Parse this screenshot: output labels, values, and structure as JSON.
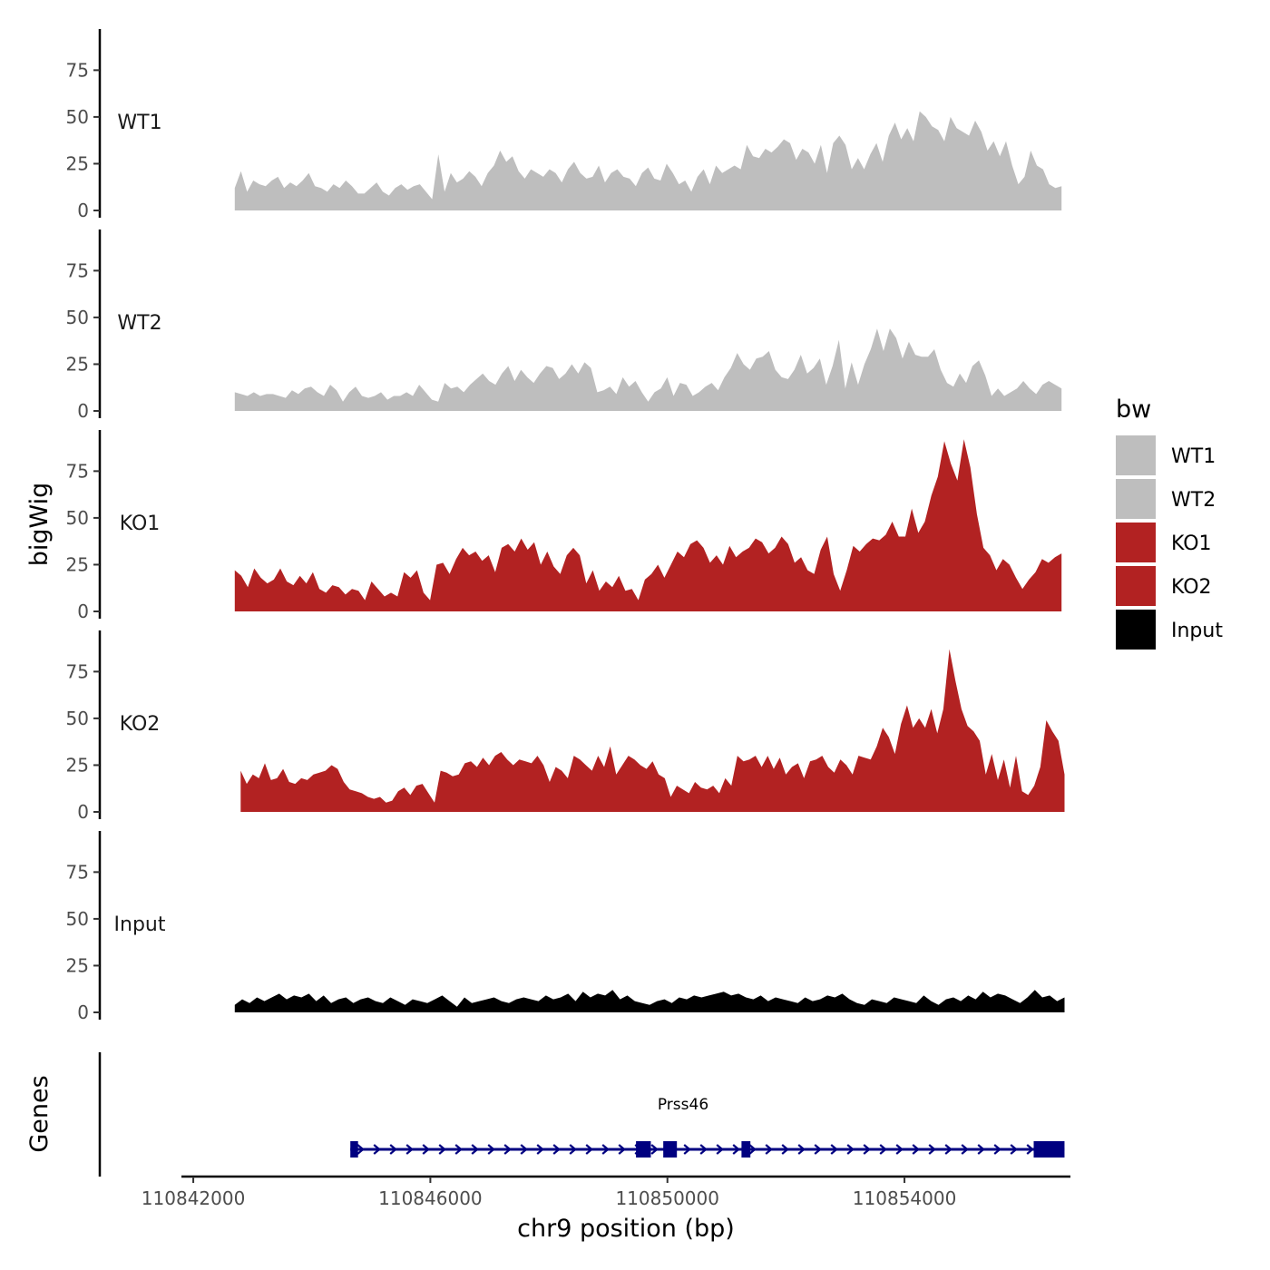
{
  "chart_data": {
    "type": "area",
    "y_axis_title": "bigWig",
    "x_axis_title": "chr9 position (bp)",
    "genes_axis_title": "Genes",
    "x_range": [
      110841800,
      110856800
    ],
    "data_extent": [
      110842700,
      110856700
    ],
    "y_range": [
      0,
      97
    ],
    "y_ticks": [
      0,
      25,
      50,
      75
    ],
    "x_ticks": [
      110842000,
      110846000,
      110850000,
      110854000
    ],
    "x_tick_labels": [
      "110842000",
      "110846000",
      "110850000",
      "110854000"
    ],
    "y_tick_labels": [
      "0",
      "25",
      "50",
      "75"
    ],
    "legend": {
      "title": "bw",
      "entries": [
        {
          "name": "WT1",
          "color": "#bebebe"
        },
        {
          "name": "WT2",
          "color": "#bebebe"
        },
        {
          "name": "KO1",
          "color": "#b22222"
        },
        {
          "name": "KO2",
          "color": "#b22222"
        },
        {
          "name": "Input",
          "color": "#000000"
        }
      ]
    },
    "tracks": [
      {
        "name": "WT1",
        "color": "#bebebe",
        "start": 110842700,
        "end": 110856650,
        "values": [
          12,
          21,
          10,
          16,
          14,
          13,
          16,
          18,
          12,
          15,
          13,
          16,
          20,
          13,
          12,
          10,
          14,
          12,
          16,
          13,
          9,
          9,
          12,
          15,
          10,
          8,
          12,
          14,
          11,
          13,
          14,
          10,
          6,
          30,
          10,
          20,
          15,
          17,
          21,
          18,
          13,
          20,
          24,
          32,
          26,
          29,
          21,
          17,
          22,
          20,
          18,
          22,
          20,
          15,
          22,
          26,
          20,
          17,
          18,
          24,
          15,
          20,
          22,
          18,
          17,
          13,
          20,
          23,
          17,
          16,
          25,
          20,
          14,
          16,
          10,
          18,
          22,
          14,
          24,
          20,
          22,
          24,
          22,
          35,
          29,
          28,
          33,
          31,
          34,
          38,
          36,
          27,
          33,
          31,
          25,
          35,
          20,
          36,
          40,
          35,
          22,
          28,
          22,
          30,
          36,
          26,
          40,
          47,
          38,
          44,
          37,
          53,
          50,
          45,
          43,
          37,
          50,
          44,
          42,
          40,
          48,
          42,
          32,
          37,
          29,
          37,
          24,
          14,
          18,
          32,
          24,
          22,
          14,
          12,
          13
        ]
      },
      {
        "name": "WT2",
        "color": "#bebebe",
        "start": 110842700,
        "end": 110856650,
        "values": [
          10,
          9,
          8,
          10,
          8,
          9,
          9,
          8,
          7,
          11,
          9,
          12,
          13,
          10,
          8,
          14,
          11,
          5,
          10,
          13,
          8,
          7,
          8,
          10,
          6,
          8,
          8,
          10,
          8,
          14,
          10,
          6,
          5,
          15,
          12,
          13,
          10,
          14,
          17,
          20,
          16,
          14,
          20,
          24,
          16,
          22,
          18,
          15,
          20,
          24,
          23,
          17,
          20,
          25,
          20,
          26,
          23,
          10,
          11,
          13,
          9,
          18,
          13,
          16,
          10,
          5,
          10,
          12,
          18,
          8,
          15,
          14,
          8,
          10,
          13,
          15,
          11,
          18,
          23,
          31,
          25,
          22,
          28,
          29,
          32,
          22,
          18,
          17,
          22,
          30,
          20,
          23,
          28,
          14,
          24,
          38,
          12,
          26,
          14,
          25,
          33,
          44,
          32,
          44,
          39,
          28,
          37,
          30,
          29,
          29,
          33,
          22,
          15,
          13,
          20,
          15,
          24,
          27,
          19,
          8,
          12,
          8,
          10,
          12,
          16,
          12,
          9,
          14,
          16,
          14,
          12
        ]
      },
      {
        "name": "KO1",
        "color": "#b22222",
        "start": 110842700,
        "end": 110856650,
        "values": [
          22,
          19,
          13,
          23,
          18,
          15,
          17,
          23,
          16,
          14,
          19,
          15,
          21,
          12,
          10,
          14,
          13,
          9,
          12,
          11,
          6,
          16,
          12,
          8,
          10,
          8,
          21,
          18,
          22,
          10,
          6,
          25,
          26,
          20,
          28,
          34,
          30,
          32,
          27,
          30,
          21,
          34,
          36,
          32,
          39,
          33,
          37,
          25,
          32,
          24,
          20,
          30,
          34,
          30,
          15,
          22,
          11,
          16,
          13,
          19,
          11,
          12,
          6,
          17,
          20,
          25,
          18,
          25,
          32,
          29,
          36,
          38,
          34,
          26,
          30,
          25,
          35,
          29,
          32,
          34,
          39,
          37,
          31,
          34,
          40,
          36,
          26,
          29,
          22,
          20,
          33,
          40,
          20,
          11,
          22,
          35,
          32,
          36,
          39,
          38,
          41,
          48,
          40,
          40,
          55,
          42,
          48,
          62,
          72,
          91,
          79,
          70,
          92,
          77,
          52,
          34,
          30,
          22,
          28,
          25,
          18,
          12,
          17,
          21,
          28,
          26,
          29,
          31
        ]
      },
      {
        "name": "KO2",
        "color": "#b22222",
        "start": 110842800,
        "end": 110856700,
        "values": [
          22,
          15,
          20,
          18,
          26,
          17,
          18,
          23,
          16,
          15,
          18,
          17,
          20,
          21,
          22,
          25,
          23,
          16,
          12,
          11,
          10,
          8,
          7,
          8,
          5,
          6,
          11,
          13,
          9,
          14,
          15,
          10,
          5,
          22,
          21,
          19,
          20,
          26,
          27,
          24,
          29,
          25,
          30,
          32,
          28,
          25,
          28,
          27,
          26,
          30,
          25,
          16,
          24,
          22,
          18,
          30,
          28,
          25,
          22,
          30,
          24,
          35,
          20,
          25,
          30,
          28,
          25,
          23,
          27,
          20,
          18,
          8,
          14,
          12,
          10,
          16,
          13,
          12,
          14,
          10,
          18,
          14,
          30,
          27,
          28,
          30,
          24,
          30,
          23,
          29,
          20,
          24,
          26,
          18,
          27,
          28,
          30,
          24,
          21,
          28,
          25,
          20,
          30,
          29,
          28,
          35,
          45,
          40,
          31,
          47,
          57,
          45,
          50,
          45,
          55,
          42,
          55,
          87,
          70,
          55,
          46,
          43,
          38,
          20,
          31,
          17,
          28,
          13,
          30,
          11,
          9,
          14,
          24,
          49,
          43,
          38,
          20
        ]
      },
      {
        "name": "Input",
        "color": "#000000",
        "start": 110842700,
        "end": 110856700,
        "values": [
          4,
          7,
          5,
          8,
          6,
          8,
          10,
          7,
          9,
          8,
          10,
          6,
          9,
          5,
          7,
          8,
          5,
          7,
          8,
          6,
          5,
          8,
          6,
          4,
          7,
          6,
          5,
          7,
          9,
          6,
          3,
          8,
          5,
          6,
          7,
          8,
          6,
          5,
          7,
          8,
          7,
          6,
          9,
          7,
          8,
          10,
          6,
          11,
          8,
          10,
          9,
          12,
          7,
          9,
          6,
          5,
          4,
          6,
          7,
          5,
          8,
          7,
          9,
          8,
          9,
          10,
          11,
          9,
          10,
          8,
          7,
          9,
          6,
          8,
          7,
          6,
          5,
          8,
          6,
          7,
          9,
          8,
          10,
          7,
          5,
          4,
          7,
          6,
          5,
          8,
          7,
          6,
          5,
          9,
          6,
          4,
          7,
          8,
          6,
          9,
          7,
          11,
          8,
          10,
          9,
          7,
          5,
          8,
          12,
          8,
          9,
          6,
          8
        ]
      }
    ],
    "gene": {
      "name": "Prss46",
      "start": 110844650,
      "end": 110856700,
      "strand": "+",
      "color": "#000080",
      "exons": [
        [
          110844650,
          110844780
        ],
        [
          110849470,
          110849720
        ],
        [
          110849930,
          110850160
        ],
        [
          110851250,
          110851400
        ],
        [
          110856180,
          110856700
        ]
      ]
    }
  }
}
